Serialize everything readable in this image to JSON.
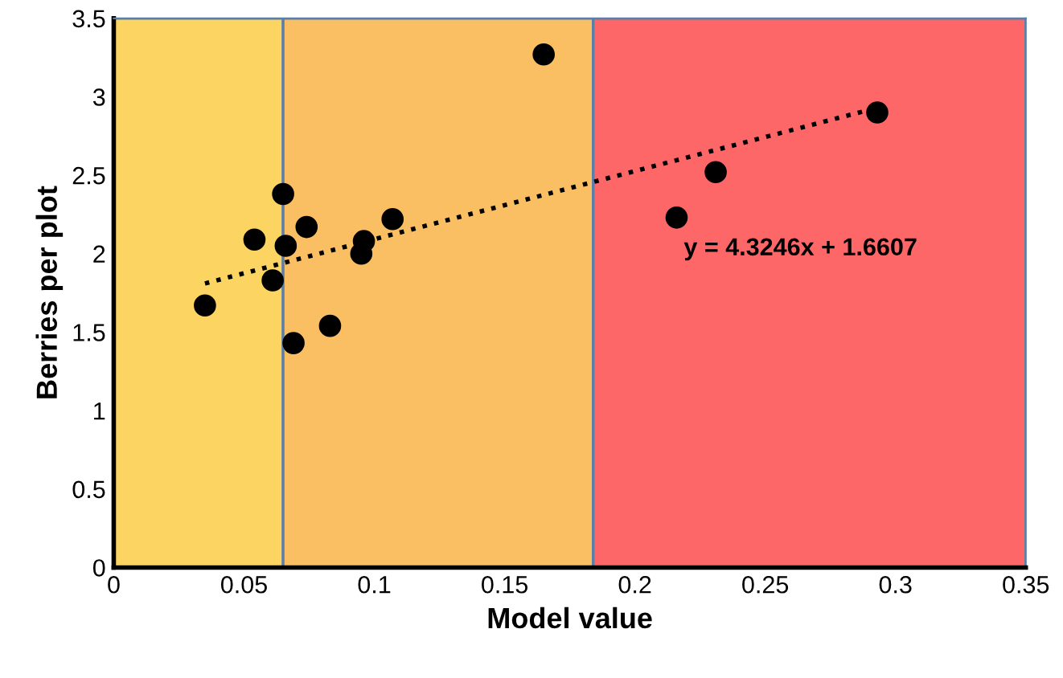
{
  "chart_data": {
    "type": "scatter",
    "xlabel": "Model value",
    "ylabel": "Berries per plot",
    "xlim": [
      0,
      0.35
    ],
    "xticks": [
      0,
      0.05,
      0.1,
      0.15,
      0.2,
      0.25,
      0.3,
      0.35
    ],
    "ylim": [
      0,
      3.5
    ],
    "yticks": [
      0,
      0.5,
      1,
      1.5,
      2,
      2.5,
      3,
      3.5
    ],
    "grid": false,
    "legend": false,
    "series": [
      {
        "color": "#000000",
        "marker": "circle",
        "x": [
          0.035,
          0.054,
          0.061,
          0.065,
          0.066,
          0.069,
          0.074,
          0.083,
          0.095,
          0.096,
          0.107,
          0.165,
          0.216,
          0.231,
          0.293
        ],
        "values": [
          1.67,
          2.09,
          1.83,
          2.38,
          2.05,
          1.43,
          2.17,
          1.54,
          2.0,
          2.08,
          2.22,
          3.27,
          2.23,
          2.52,
          2.9
        ]
      },
      {
        "type": "line",
        "color": "#000000",
        "marker": "none",
        "line_style": "dotted",
        "x": [
          0.035,
          0.293
        ],
        "values": [
          1.81,
          2.93
        ]
      }
    ],
    "bands": [
      {
        "axis": "x",
        "from": 0,
        "to": 0.065,
        "color": "#fcd462"
      },
      {
        "axis": "x",
        "from": 0.065,
        "to": 0.184,
        "color": "#fbbf63"
      },
      {
        "axis": "x",
        "from": 0.184,
        "to": 0.35,
        "color": "#fe6767"
      }
    ],
    "annotations": [
      "y = 4.3246x + 1.6607"
    ]
  }
}
